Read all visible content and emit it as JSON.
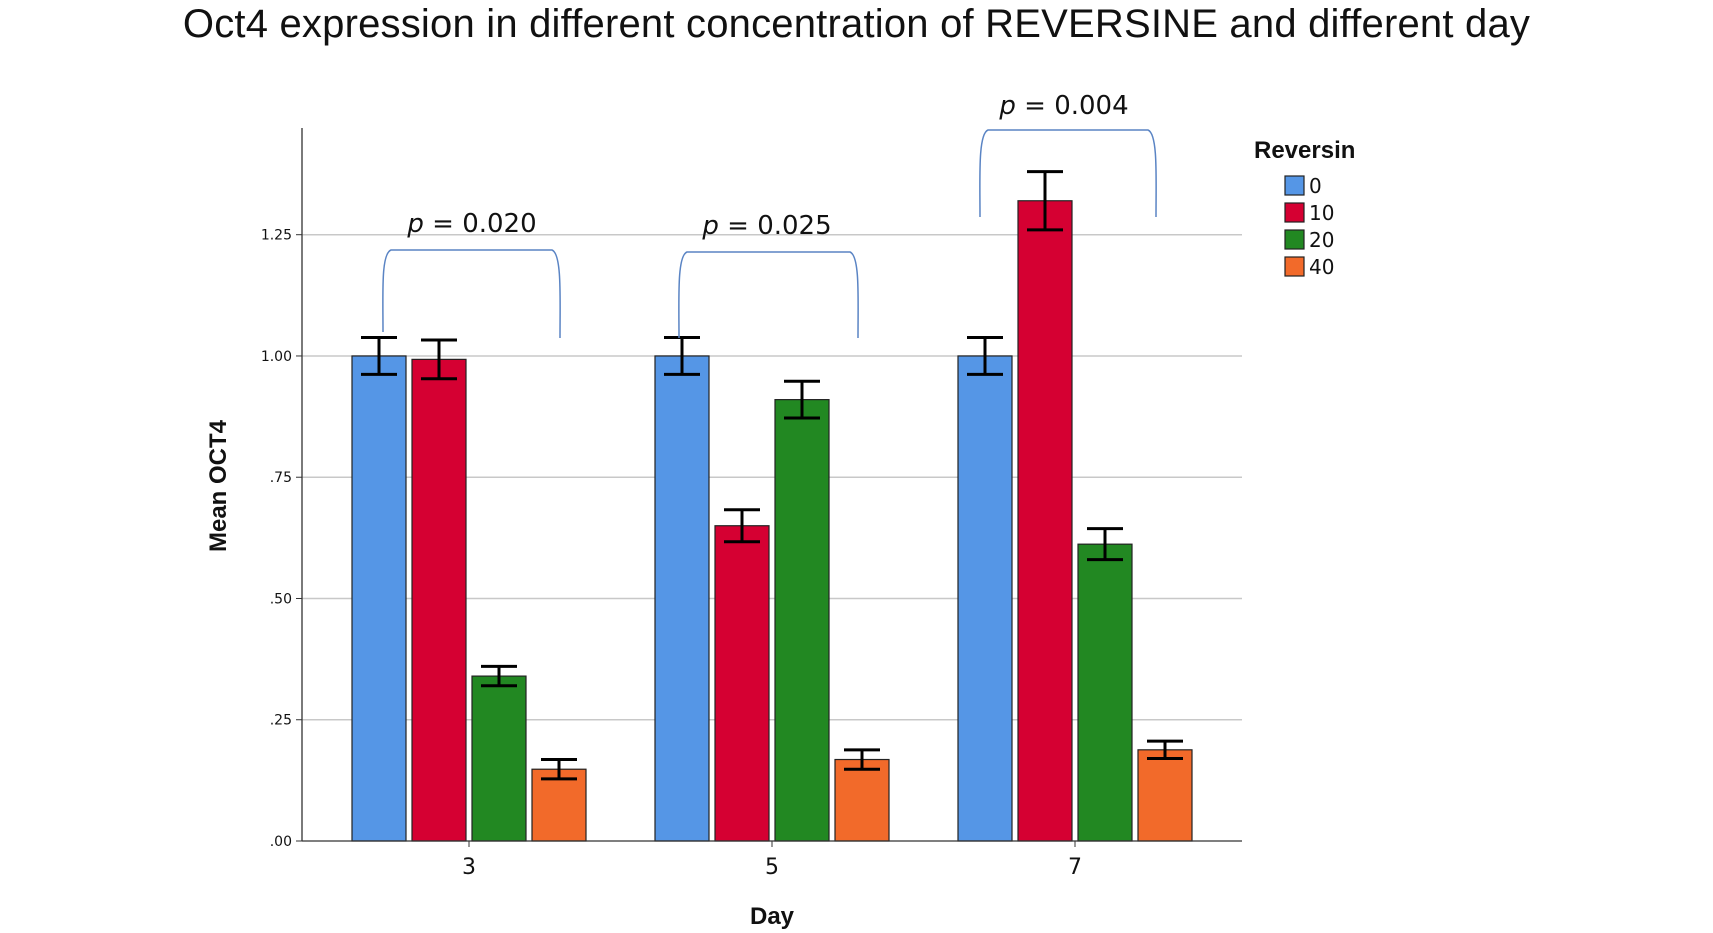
{
  "title": "Oct4 expression in different concentration of REVERSINE and different day",
  "chart_data": {
    "type": "bar",
    "title": "Oct4 expression in different concentration of REVERSINE and different day",
    "xlabel": "Day",
    "ylabel": "Mean OCT4",
    "categories": [
      "3",
      "5",
      "7"
    ],
    "ylim": [
      0,
      1.47
    ],
    "yticks": [
      0,
      0.25,
      0.5,
      0.75,
      1.0,
      1.25
    ],
    "ytick_labels": [
      ".00",
      ".25",
      ".50",
      ".75",
      "1.00",
      "1.25"
    ],
    "grid": true,
    "legend": {
      "title": "Reversin",
      "position": "right"
    },
    "series": [
      {
        "name": "0",
        "color": "#5596e6",
        "values": [
          1.0,
          1.0,
          1.0
        ],
        "error": [
          0.038,
          0.038,
          0.038
        ]
      },
      {
        "name": "10",
        "color": "#d50032",
        "values": [
          0.993,
          0.65,
          1.32
        ],
        "error": [
          0.04,
          0.033,
          0.06
        ]
      },
      {
        "name": "20",
        "color": "#228822",
        "values": [
          0.34,
          0.91,
          0.612
        ],
        "error": [
          0.02,
          0.038,
          0.032
        ]
      },
      {
        "name": "40",
        "color": "#f26a2a",
        "values": [
          0.148,
          0.168,
          0.188
        ],
        "error": [
          0.02,
          0.02,
          0.018
        ]
      }
    ],
    "annotations": [
      {
        "label_p": "p",
        "label_value": " = 0.020",
        "category": "3"
      },
      {
        "label_p": "p",
        "label_value": " = 0.025",
        "category": "5"
      },
      {
        "label_p": "p",
        "label_value": " = 0.004",
        "category": "7"
      }
    ]
  }
}
